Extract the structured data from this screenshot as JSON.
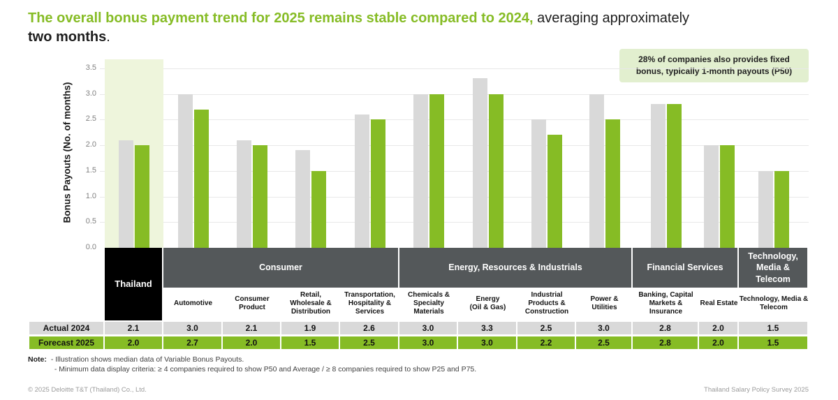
{
  "title": {
    "highlight": "The overall bonus payment trend for 2025 remains stable compared to 2024,",
    "normal": " averaging approximately",
    "bold_line2": "two months",
    "period": "."
  },
  "callout_text": "28% of companies also provides fixed\nbonus, typically 1-month payouts (P50)",
  "chart_data": {
    "type": "bar",
    "ylabel": "Bonus Payouts (No. of months)",
    "ylim": [
      0,
      3.5
    ],
    "yticks": [
      "0.0",
      "0.5",
      "1.0",
      "1.5",
      "2.0",
      "2.5",
      "3.0",
      "3.5"
    ],
    "grid": true,
    "highlighted_category": "Thailand",
    "categories": [
      "Thailand",
      "Automotive",
      "Consumer Product",
      "Retail, Wholesale & Distribution",
      "Transportation, Hospitality & Services",
      "Chemicals & Specialty Materials",
      "Energy (Oil & Gas)",
      "Industrial Products & Construction",
      "Power & Utilities",
      "Banking, Capital Markets & Insurance",
      "Real Estate",
      "Technology, Media & Telecom"
    ],
    "series": [
      {
        "name": "Actual 2024",
        "color": "#d9d9d9",
        "values": [
          2.1,
          3.0,
          2.1,
          1.9,
          2.6,
          3.0,
          3.3,
          2.5,
          3.0,
          2.8,
          2.0,
          1.5
        ]
      },
      {
        "name": "Forecast 2025",
        "color": "#86bc25",
        "values": [
          2.0,
          2.7,
          2.0,
          1.5,
          2.5,
          3.0,
          3.0,
          2.2,
          2.5,
          2.8,
          2.0,
          1.5
        ]
      }
    ],
    "groups": [
      {
        "label": "Thailand",
        "span": 1
      },
      {
        "label": "Consumer",
        "span": 4
      },
      {
        "label": "Energy, Resources & Industrials",
        "span": 4
      },
      {
        "label": "Financial Services",
        "span": 2
      },
      {
        "label": "Technology,\nMedia & Telecom",
        "span": 1
      }
    ]
  },
  "table": {
    "sub_headers": [
      "Automotive",
      "Consumer\nProduct",
      "Retail,\nWholesale &\nDistribution",
      "Transportation,\nHospitality &\nServices",
      "Chemicals &\nSpecialty\nMaterials",
      "Energy\n(Oil & Gas)",
      "Industrial\nProducts &\nConstruction",
      "Power &\nUtilities",
      "Banking, Capital\nMarkets &\nInsurance",
      "Real Estate",
      "Technology, Media &\nTelecom"
    ]
  },
  "note": {
    "label": "Note:",
    "lines": [
      "- Illustration shows median data of Variable Bonus Payouts.",
      "- Minimum data display criteria: ≥ 4 companies required to show P50 and Average / ≥ 8 companies required to show P25 and P75."
    ]
  },
  "footer": {
    "left": "© 2025 Deloitte T&T (Thailand) Co., Ltd.",
    "right": "Thailand Salary Policy Survey 2025"
  },
  "colors": {
    "green": "#86bc25",
    "gray_bar": "#d9d9d9",
    "band": "#eef5dc",
    "callout_bg": "#e2efcf",
    "header_dark": "#54585a",
    "header_black": "#000000"
  }
}
